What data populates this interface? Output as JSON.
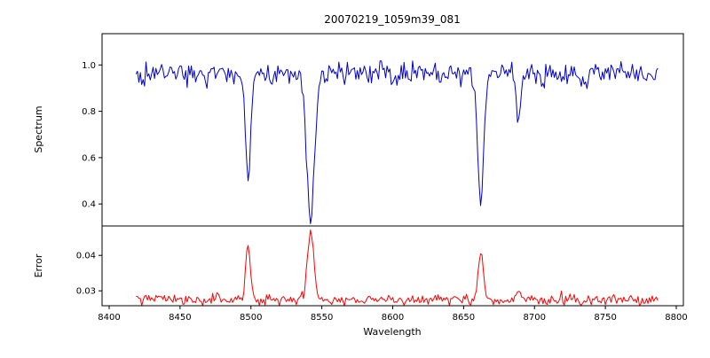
{
  "chart_data": {
    "type": "line",
    "title": "20070219_1059m39_081",
    "xlabel": "Wavelength",
    "xlim": [
      8395,
      8805
    ],
    "xticks": [
      8400,
      8450,
      8500,
      8550,
      8600,
      8650,
      8700,
      8750,
      8800
    ],
    "x_start": 8419,
    "x_end": 8787,
    "x_step": 1,
    "grid": false,
    "legend": "none",
    "panels": [
      {
        "name": "spectrum",
        "ylabel": "Spectrum",
        "ylim": [
          0.305,
          1.135
        ],
        "yticks": [
          0.4,
          0.6,
          0.8,
          1.0
        ],
        "ytick_labels": [
          "0.4",
          "0.6",
          "0.8",
          "1.0"
        ],
        "line_color": "#0000cc",
        "continuum": 0.965,
        "noise_sigma": 0.022,
        "features": [
          {
            "center": 8424.1,
            "amplitude": -0.06,
            "sigma": 1.2
          },
          {
            "center": 8468.4,
            "amplitude": -0.05,
            "sigma": 1.2
          },
          {
            "center": 8498.0,
            "amplitude": -0.49,
            "sigma": 1.8
          },
          {
            "center": 8514.1,
            "amplitude": -0.04,
            "sigma": 1.0
          },
          {
            "center": 8542.1,
            "amplitude": -0.62,
            "sigma": 2.8
          },
          {
            "center": 8582.2,
            "amplitude": -0.04,
            "sigma": 1.0
          },
          {
            "center": 8611.8,
            "amplitude": -0.04,
            "sigma": 1.0
          },
          {
            "center": 8648.5,
            "amplitude": -0.04,
            "sigma": 1.0
          },
          {
            "center": 8662.1,
            "amplitude": -0.55,
            "sigma": 2.2
          },
          {
            "center": 8688.6,
            "amplitude": -0.2,
            "sigma": 1.5
          },
          {
            "center": 8717.0,
            "amplitude": -0.04,
            "sigma": 1.0
          },
          {
            "center": 8736.9,
            "amplitude": -0.04,
            "sigma": 1.0
          }
        ]
      },
      {
        "name": "error",
        "ylabel": "Error",
        "ylim": [
          0.0258,
          0.0483
        ],
        "yticks": [
          0.03,
          0.04
        ],
        "ytick_labels": [
          "0.03",
          "0.04"
        ],
        "line_color": "#ff0000",
        "continuum": 0.0275,
        "noise_sigma": 0.0008,
        "features": [
          {
            "center": 8498.0,
            "amplitude": 0.0155,
            "sigma": 1.6
          },
          {
            "center": 8542.1,
            "amplitude": 0.0195,
            "sigma": 2.2
          },
          {
            "center": 8662.1,
            "amplitude": 0.014,
            "sigma": 1.8
          },
          {
            "center": 8688.6,
            "amplitude": 0.0028,
            "sigma": 1.4
          }
        ]
      }
    ]
  }
}
